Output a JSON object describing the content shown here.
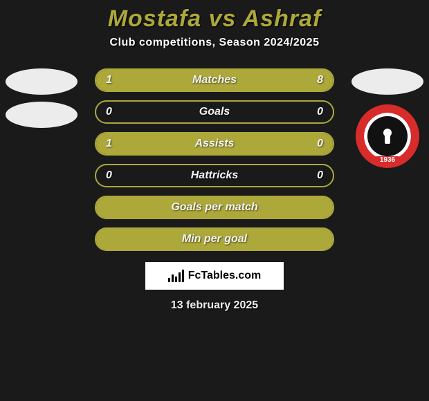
{
  "title": "Mostafa vs Ashraf",
  "subtitle": "Club competitions, Season 2024/2025",
  "left_player": {
    "name": "Mostafa"
  },
  "right_player": {
    "name": "Ashraf",
    "badge_year": "1936"
  },
  "accent_color": "#ada83a",
  "background_color": "#1a1a1a",
  "rows": [
    {
      "label": "Matches",
      "left": "1",
      "right": "8",
      "fill_left_pct": 12,
      "fill_right_pct": 88
    },
    {
      "label": "Goals",
      "left": "0",
      "right": "0",
      "fill_left_pct": 0,
      "fill_right_pct": 0
    },
    {
      "label": "Assists",
      "left": "1",
      "right": "0",
      "fill_left_pct": 100,
      "fill_right_pct": 0
    },
    {
      "label": "Hattricks",
      "left": "0",
      "right": "0",
      "fill_left_pct": 0,
      "fill_right_pct": 0
    },
    {
      "label": "Goals per match",
      "left": "",
      "right": "",
      "fill_left_pct": 100,
      "fill_right_pct": 100
    },
    {
      "label": "Min per goal",
      "left": "",
      "right": "",
      "fill_left_pct": 100,
      "fill_right_pct": 100
    }
  ],
  "footer_logo_text": "FcTables.com",
  "footer_date": "13 february 2025"
}
